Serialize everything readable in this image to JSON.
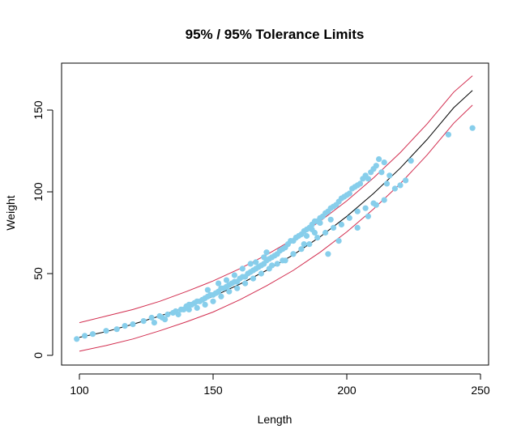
{
  "chart_data": {
    "type": "scatter",
    "title": "95% / 95% Tolerance Limits",
    "xlabel": "Length",
    "ylabel": "Weight",
    "xlim": [
      100,
      247
    ],
    "ylim": [
      0,
      171
    ],
    "xticks": [
      "100",
      "150",
      "200",
      "250"
    ],
    "yticks": [
      "0",
      "50",
      "100",
      "150"
    ],
    "grid": false,
    "legend": "none",
    "colors": {
      "points": "#87CEEB",
      "fit": "#000000",
      "limits": "#D22C4E",
      "frame": "#000000"
    },
    "series": [
      {
        "kind": "points",
        "x": [
          99,
          102,
          105,
          110,
          114,
          117,
          120,
          124,
          127,
          130,
          131,
          133,
          135,
          136,
          138,
          139,
          140,
          141,
          142,
          143,
          144,
          145,
          146,
          147,
          148,
          149,
          150,
          151,
          152,
          153,
          154,
          155,
          156,
          157,
          158,
          159,
          160,
          161,
          162,
          163,
          164,
          165,
          166,
          167,
          168,
          169,
          170,
          171,
          172,
          173,
          174,
          175,
          176,
          177,
          178,
          179,
          180,
          181,
          182,
          183,
          184,
          185,
          186,
          187,
          188,
          189,
          190,
          191,
          192,
          193,
          194,
          195,
          196,
          197,
          198,
          199,
          200,
          201,
          202,
          203,
          204,
          205,
          206,
          207,
          208,
          209,
          210,
          211,
          212,
          213,
          214,
          215,
          216,
          218,
          220,
          222,
          224,
          238,
          247,
          128,
          132,
          137,
          141,
          144,
          147,
          150,
          153,
          156,
          159,
          162,
          165,
          168,
          171,
          174,
          177,
          180,
          183,
          186,
          189,
          192,
          195,
          198,
          201,
          204,
          207,
          210,
          170,
          172,
          176,
          180,
          181,
          184,
          188,
          190,
          193,
          197,
          204,
          208,
          211,
          214,
          148,
          152,
          155,
          158,
          161,
          164,
          166,
          169,
          185,
          187,
          194
        ],
        "y": [
          10,
          12,
          13,
          15,
          16,
          18,
          19,
          21,
          23,
          24,
          23,
          25,
          26,
          27,
          28,
          28,
          30,
          31,
          31,
          32,
          33,
          33,
          34,
          35,
          36,
          37,
          37,
          38,
          39,
          41,
          41,
          42,
          43,
          44,
          45,
          45,
          47,
          48,
          48,
          50,
          51,
          52,
          53,
          54,
          55,
          56,
          58,
          59,
          60,
          61,
          62,
          64,
          65,
          66,
          68,
          70,
          70,
          72,
          73,
          74,
          76,
          77,
          78,
          80,
          82,
          82,
          84,
          85,
          87,
          88,
          90,
          91,
          92,
          94,
          96,
          97,
          98,
          99,
          102,
          103,
          104,
          105,
          108,
          110,
          108,
          112,
          114,
          116,
          120,
          112,
          118,
          105,
          110,
          102,
          104,
          107,
          119,
          135,
          139,
          20,
          22,
          25,
          28,
          29,
          31,
          33,
          36,
          39,
          41,
          44,
          47,
          50,
          53,
          56,
          58,
          62,
          65,
          68,
          72,
          75,
          78,
          80,
          84,
          88,
          90,
          93,
          63,
          55,
          58,
          62,
          72,
          68,
          75,
          81,
          62,
          70,
          78,
          85,
          92,
          95,
          40,
          44,
          46,
          49,
          53,
          56,
          57,
          60,
          73,
          77,
          83
        ]
      },
      {
        "kind": "fit",
        "x": [
          100,
          110,
          120,
          130,
          140,
          150,
          160,
          170,
          180,
          190,
          200,
          210,
          220,
          230,
          240,
          247
        ],
        "y": [
          11,
          14.5,
          19,
          24,
          29.5,
          36,
          43.5,
          52,
          61.5,
          72.5,
          85,
          99,
          114.5,
          132,
          151.5,
          162
        ]
      },
      {
        "kind": "upper-limit",
        "x": [
          100,
          110,
          120,
          130,
          140,
          150,
          160,
          170,
          180,
          190,
          200,
          210,
          220,
          230,
          240,
          247
        ],
        "y": [
          20,
          24,
          28,
          33,
          39,
          45.5,
          53,
          61.5,
          71,
          82,
          94.5,
          108.5,
          124,
          141.5,
          161,
          171
        ]
      },
      {
        "kind": "lower-limit",
        "x": [
          100,
          110,
          120,
          130,
          140,
          150,
          160,
          170,
          180,
          190,
          200,
          210,
          220,
          230,
          240,
          247
        ],
        "y": [
          2.5,
          6,
          10,
          15,
          20.5,
          26.5,
          34,
          42.5,
          52,
          63,
          75.5,
          89.5,
          105,
          122.5,
          142,
          153
        ]
      }
    ]
  }
}
